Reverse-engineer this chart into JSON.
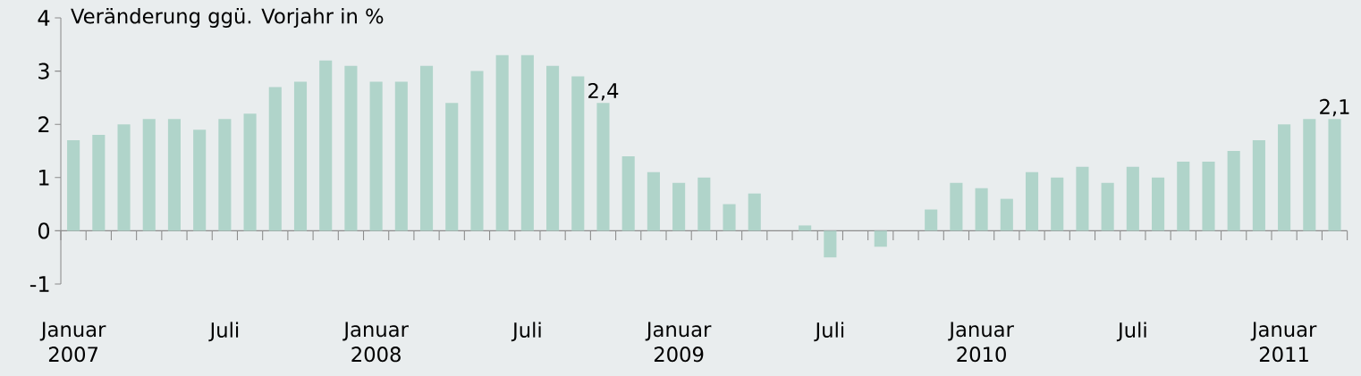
{
  "chart_data": {
    "type": "bar",
    "ylabel": "Veränderung ggü. Vorjahr in %",
    "categories": [
      "Januar 2007",
      null,
      null,
      null,
      null,
      null,
      "Juli",
      null,
      null,
      null,
      null,
      null,
      "Januar 2008",
      null,
      null,
      null,
      null,
      null,
      "Juli",
      null,
      null,
      null,
      null,
      null,
      "Januar 2009",
      null,
      null,
      null,
      null,
      null,
      "Juli",
      null,
      null,
      null,
      null,
      null,
      "Januar 2010",
      null,
      null,
      null,
      null,
      null,
      "Juli",
      null,
      null,
      null,
      null,
      null,
      "Januar 2011",
      null,
      null
    ],
    "values": [
      1.7,
      1.8,
      2.0,
      2.1,
      2.1,
      1.9,
      2.1,
      2.2,
      2.7,
      2.8,
      3.2,
      3.1,
      2.8,
      2.8,
      3.1,
      2.4,
      3.0,
      3.3,
      3.3,
      3.1,
      2.9,
      2.4,
      1.4,
      1.1,
      0.9,
      1.0,
      0.5,
      0.7,
      0.0,
      0.1,
      -0.5,
      0.0,
      -0.3,
      0.0,
      0.4,
      0.9,
      0.8,
      0.6,
      1.1,
      1.0,
      1.2,
      0.9,
      1.2,
      1.0,
      1.3,
      1.3,
      1.5,
      1.7,
      2.0,
      2.1,
      2.1
    ],
    "value_labels": [
      null,
      null,
      null,
      null,
      null,
      null,
      null,
      null,
      null,
      null,
      null,
      null,
      null,
      null,
      null,
      null,
      null,
      null,
      null,
      null,
      null,
      "2,4",
      null,
      null,
      null,
      null,
      null,
      null,
      null,
      null,
      null,
      null,
      null,
      null,
      null,
      null,
      null,
      null,
      null,
      null,
      null,
      null,
      null,
      null,
      null,
      null,
      null,
      null,
      null,
      null,
      "2,1"
    ],
    "color": "#b0d4ca",
    "ylim": [
      -1,
      4
    ],
    "yticks": [
      -1,
      0,
      1,
      2,
      3,
      4
    ]
  }
}
